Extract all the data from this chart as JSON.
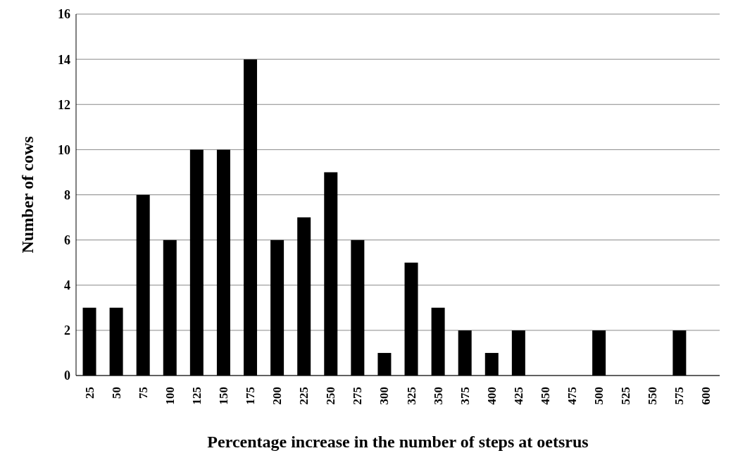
{
  "chart_data": {
    "type": "bar",
    "xlabel": "Percentage increase in the number of steps at oetsrus",
    "ylabel": "Number of cows",
    "categories": [
      "25",
      "50",
      "75",
      "100",
      "125",
      "150",
      "175",
      "200",
      "225",
      "250",
      "275",
      "300",
      "325",
      "350",
      "375",
      "400",
      "425",
      "450",
      "475",
      "500",
      "525",
      "550",
      "575",
      "600"
    ],
    "values": [
      3,
      3,
      8,
      6,
      10,
      10,
      14,
      6,
      7,
      9,
      6,
      1,
      5,
      3,
      2,
      1,
      2,
      0,
      0,
      2,
      0,
      0,
      2,
      0
    ],
    "color": "#000000",
    "ylim": [
      0,
      16
    ],
    "yticks": [
      0,
      2,
      4,
      6,
      8,
      10,
      12,
      14,
      16
    ],
    "grid": "y",
    "legend": false
  }
}
